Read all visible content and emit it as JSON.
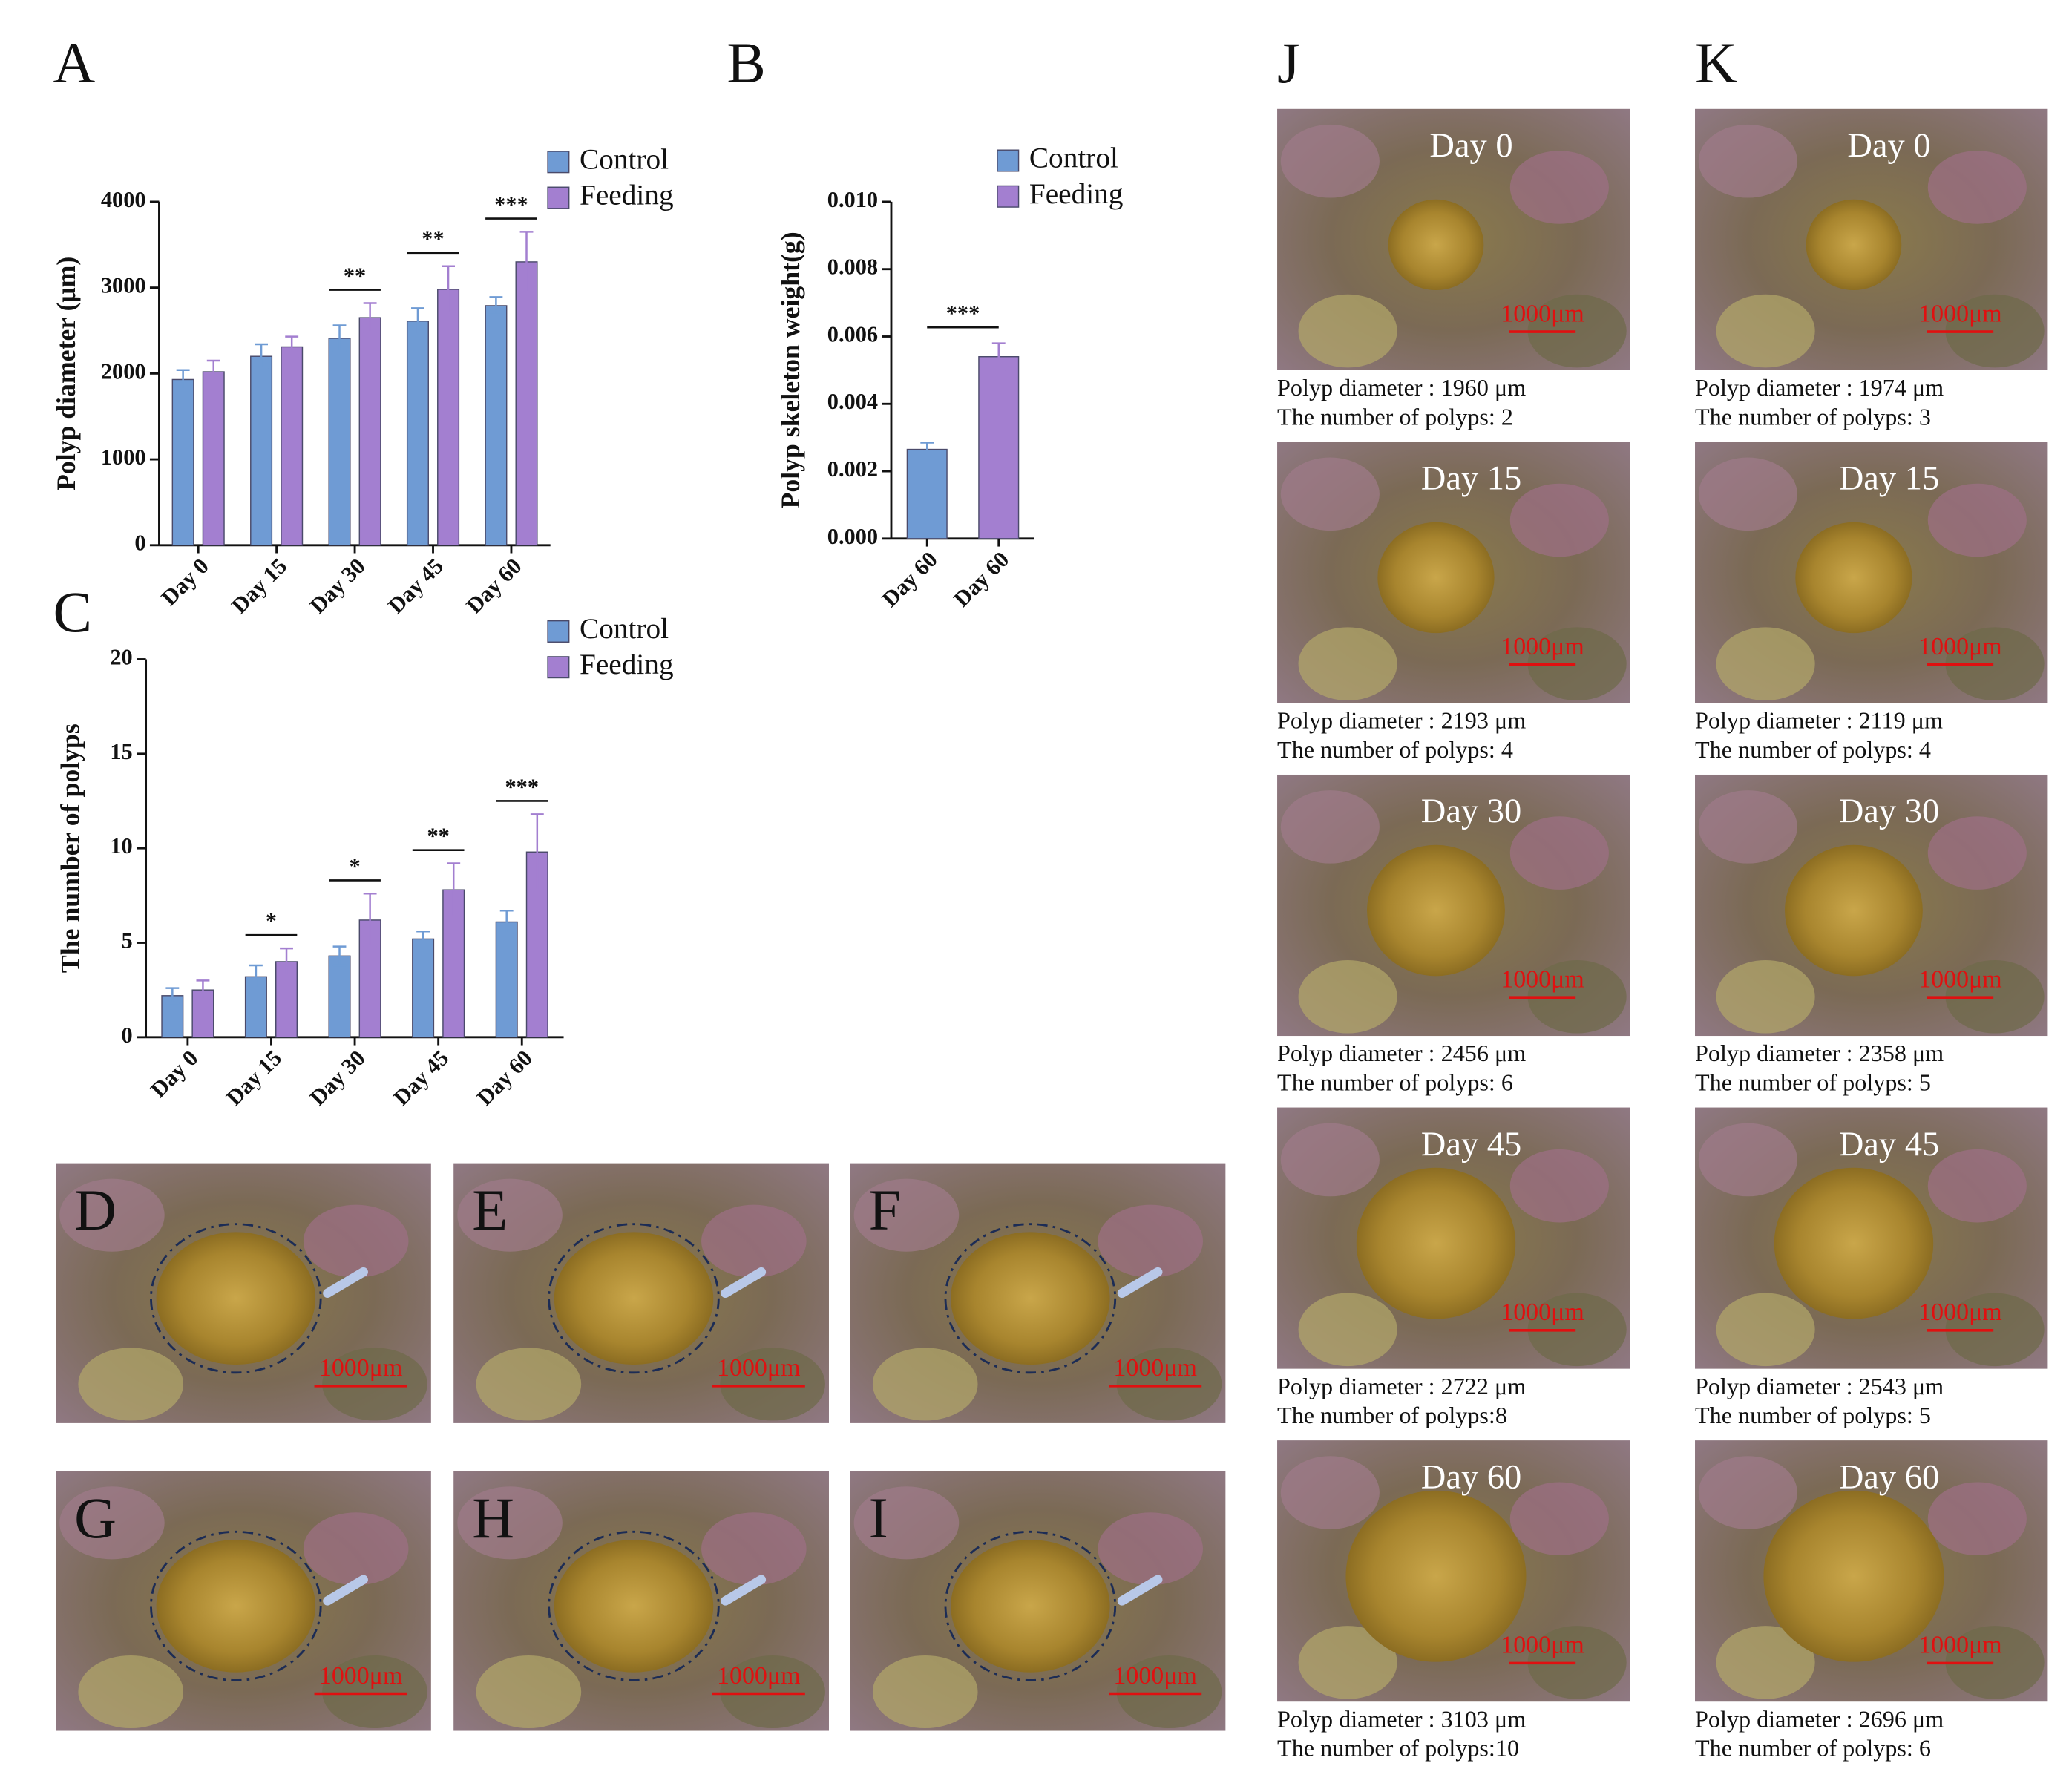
{
  "chart_data": [
    {
      "type": "bar",
      "label": "A",
      "ylabel": "Polyp diameter (μm)",
      "categories": [
        "Day 0",
        "Day 15",
        "Day 30",
        "Day 45",
        "Day 60"
      ],
      "series": [
        {
          "name": "Control",
          "color": "#6f9bd4",
          "values": [
            1930,
            2200,
            2410,
            2610,
            2790
          ],
          "errors": [
            110,
            140,
            150,
            150,
            100
          ]
        },
        {
          "name": "Feeding",
          "color": "#a37fd0",
          "values": [
            2020,
            2310,
            2650,
            2980,
            3300
          ],
          "errors": [
            130,
            120,
            170,
            270,
            350
          ]
        }
      ],
      "annotations": [
        null,
        null,
        "**",
        "**",
        "***"
      ],
      "ylim": [
        0,
        4000
      ],
      "yticks": [
        0,
        1000,
        2000,
        3000,
        4000
      ]
    },
    {
      "type": "bar",
      "label": "B",
      "ylabel": "Polyp skeleton weight(g)",
      "categories": [
        "Day 60",
        "Day 60"
      ],
      "series": [
        {
          "name": "Control",
          "color": "#6f9bd4",
          "values": [
            0.00265,
            null
          ],
          "errors": [
            0.0002,
            null
          ]
        },
        {
          "name": "Feeding",
          "color": "#a37fd0",
          "values": [
            null,
            0.0054
          ],
          "errors": [
            null,
            0.0004
          ]
        }
      ],
      "annotation": "***",
      "ylim": [
        0,
        0.01
      ],
      "yticks": [
        {
          "value": 0,
          "label": "0.000"
        },
        {
          "value": 0.002,
          "label": "0.002"
        },
        {
          "value": 0.004,
          "label": "0.004"
        },
        {
          "value": 0.006,
          "label": "0.006"
        },
        {
          "value": 0.008,
          "label": "0.008"
        },
        {
          "value": 0.01,
          "label": "0.010"
        }
      ]
    },
    {
      "type": "bar",
      "label": "C",
      "ylabel": "The number of polyps",
      "categories": [
        "Day 0",
        "Day 15",
        "Day 30",
        "Day 45",
        "Day 60"
      ],
      "series": [
        {
          "name": "Control",
          "color": "#6f9bd4",
          "values": [
            2.2,
            3.2,
            4.3,
            5.2,
            6.1
          ],
          "errors": [
            0.4,
            0.6,
            0.5,
            0.4,
            0.6
          ]
        },
        {
          "name": "Feeding",
          "color": "#a37fd0",
          "values": [
            2.5,
            4.0,
            6.2,
            7.8,
            9.8
          ],
          "errors": [
            0.5,
            0.7,
            1.4,
            1.4,
            2.0
          ]
        }
      ],
      "annotations": [
        null,
        "*",
        "*",
        "**",
        "***"
      ],
      "ylim": [
        0,
        20
      ],
      "yticks": [
        0,
        5,
        10,
        15,
        20
      ]
    }
  ],
  "scale_bar": "1000μm",
  "photo_panels": [
    "D",
    "E",
    "F",
    "G",
    "H",
    "I"
  ],
  "columns": [
    {
      "label": "J",
      "items": [
        {
          "day": "Day 0",
          "diameter": "Polyp diameter : 1960 μm",
          "count": "The number of polyps: 2"
        },
        {
          "day": "Day 15",
          "diameter": "Polyp diameter : 2193 μm",
          "count": "The number of polyps: 4"
        },
        {
          "day": "Day 30",
          "diameter": "Polyp diameter : 2456 μm",
          "count": "The number of polyps: 6"
        },
        {
          "day": "Day 45",
          "diameter": "Polyp diameter : 2722 μm",
          "count": "The number of polyps:8"
        },
        {
          "day": "Day 60",
          "diameter": "Polyp diameter : 3103 μm",
          "count": "The number of polyps:10"
        }
      ]
    },
    {
      "label": "K",
      "items": [
        {
          "day": "Day 0",
          "diameter": "Polyp diameter : 1974 μm",
          "count": "The number of polyps: 3"
        },
        {
          "day": "Day 15",
          "diameter": "Polyp diameter : 2119 μm",
          "count": "The number of polyps: 4"
        },
        {
          "day": "Day 30",
          "diameter": "Polyp diameter : 2358 μm",
          "count": "The number of polyps: 5"
        },
        {
          "day": "Day 45",
          "diameter": "Polyp diameter : 2543 μm",
          "count": "The number of polyps: 5"
        },
        {
          "day": "Day 60",
          "diameter": "Polyp diameter : 2696 μm",
          "count": "The number of polyps: 6"
        }
      ]
    }
  ]
}
